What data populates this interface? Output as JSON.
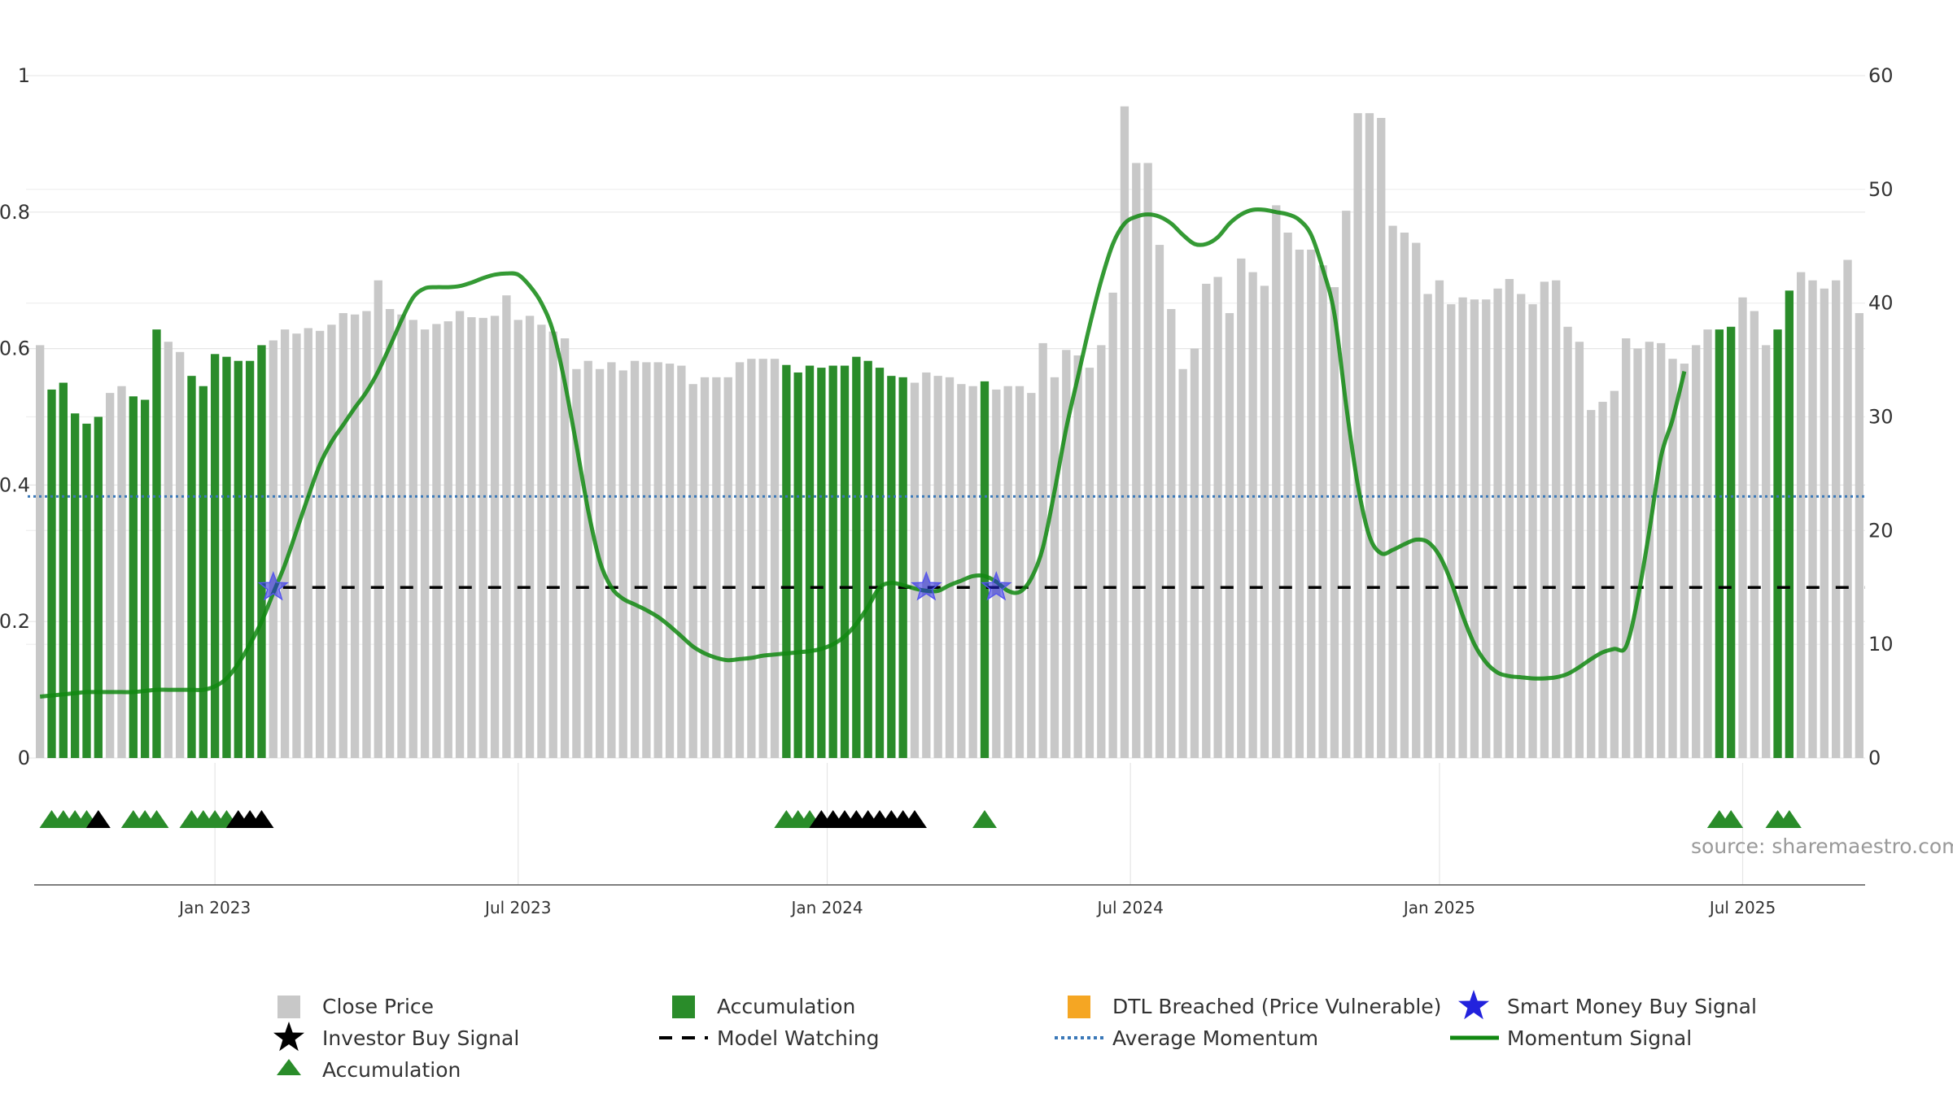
{
  "chart_data": {
    "type": "bar+line",
    "source": "source: sharemaestro.com",
    "left_axis": {
      "ylim": [
        0,
        1
      ],
      "ticks": [
        0,
        0.2,
        0.4,
        0.6,
        0.8,
        1
      ],
      "tick_labels": [
        "0",
        "0.2",
        "0.4",
        "0.6",
        "0.8",
        "1"
      ]
    },
    "right_axis": {
      "ylim": [
        0,
        60
      ],
      "ticks": [
        0,
        10,
        20,
        30,
        40,
        50,
        60
      ],
      "tick_labels": [
        "0",
        "10",
        "20",
        "30",
        "40",
        "50",
        "60"
      ]
    },
    "x_ticks": [
      {
        "label": "Jan 2023",
        "week": 15
      },
      {
        "label": "Jul 2023",
        "week": 41
      },
      {
        "label": "Jan 2024",
        "week": 67.5
      },
      {
        "label": "Jul 2024",
        "week": 93.5
      },
      {
        "label": "Jan 2025",
        "week": 120
      },
      {
        "label": "Jul 2025",
        "week": 146
      }
    ],
    "colors": {
      "close_price": "#c8c8c8",
      "accumulation": "#2a8c2a",
      "dtl_breached": "#f5a623",
      "smart_money": "#2222dd",
      "investor_buy": "#000000",
      "model_watching": "#000000",
      "average_momentum": "#3a78b8",
      "momentum_signal": "#118811"
    },
    "close_price": [
      0.605,
      0.54,
      0.55,
      0.505,
      0.49,
      0.5,
      0.535,
      0.545,
      0.53,
      0.525,
      0.628,
      0.61,
      0.595,
      0.56,
      0.545,
      0.592,
      0.588,
      0.582,
      0.582,
      0.605,
      0.612,
      0.628,
      0.622,
      0.63,
      0.626,
      0.635,
      0.652,
      0.65,
      0.655,
      0.7,
      0.658,
      0.65,
      0.642,
      0.628,
      0.636,
      0.64,
      0.655,
      0.646,
      0.645,
      0.648,
      0.678,
      0.642,
      0.648,
      0.635,
      0.625,
      0.615,
      0.57,
      0.582,
      0.57,
      0.58,
      0.568,
      0.582,
      0.58,
      0.58,
      0.578,
      0.575,
      0.548,
      0.558,
      0.558,
      0.558,
      0.58,
      0.585,
      0.585,
      0.585,
      0.576,
      0.565,
      0.575,
      0.572,
      0.575,
      0.575,
      0.588,
      0.582,
      0.572,
      0.56,
      0.558,
      0.55,
      0.565,
      0.56,
      0.558,
      0.548,
      0.545,
      0.552,
      0.54,
      0.545,
      0.545,
      0.535,
      0.608,
      0.558,
      0.598,
      0.59,
      0.572,
      0.605,
      0.682,
      0.955,
      0.872,
      0.872,
      0.752,
      0.658,
      0.57,
      0.6,
      0.695,
      0.705,
      0.652,
      0.732,
      0.712,
      0.692,
      0.81,
      0.77,
      0.745,
      0.745,
      0.722,
      0.69,
      0.802,
      0.945,
      0.945,
      0.938,
      0.78,
      0.77,
      0.755,
      0.68,
      0.7,
      0.665,
      0.675,
      0.672,
      0.672,
      0.688,
      0.702,
      0.68,
      0.665,
      0.698,
      0.7,
      0.632,
      0.61,
      0.51,
      0.522,
      0.538,
      0.615,
      0.6,
      0.61,
      0.608,
      0.585,
      0.578,
      0.605,
      0.628,
      0.628,
      0.632,
      0.675,
      0.655,
      0.605,
      0.628,
      0.685,
      0.712,
      0.7,
      0.688,
      0.7,
      0.73,
      0.652
    ],
    "accumulation_bars": [
      1,
      2,
      3,
      4,
      5,
      8,
      9,
      10,
      13,
      14,
      15,
      16,
      17,
      18,
      19,
      64,
      65,
      66,
      67,
      68,
      69,
      70,
      71,
      72,
      73,
      74,
      81,
      144,
      145,
      149,
      150
    ],
    "momentum_signal": [
      5.4,
      5.5,
      5.6,
      5.7,
      5.8,
      5.8,
      5.8,
      5.8,
      5.8,
      5.9,
      6.0,
      6.0,
      6.0,
      6.0,
      6.0,
      6.3,
      7.0,
      8.3,
      10.0,
      12.0,
      14.5,
      17.0,
      20.0,
      23.0,
      25.8,
      27.8,
      29.3,
      30.8,
      32.2,
      34.0,
      36.2,
      38.5,
      40.5,
      41.3,
      41.4,
      41.4,
      41.5,
      41.8,
      42.2,
      42.5,
      42.6,
      42.5,
      41.5,
      40.0,
      37.5,
      33.0,
      27.5,
      21.8,
      17.3,
      15.0,
      14.0,
      13.5,
      13.0,
      12.4,
      11.6,
      10.7,
      9.8,
      9.2,
      8.8,
      8.6,
      8.7,
      8.8,
      9.0,
      9.1,
      9.2,
      9.3,
      9.4,
      9.6,
      10.0,
      10.7,
      11.8,
      13.3,
      15.0,
      15.4,
      15.2,
      14.9,
      14.7,
      14.7,
      15.2,
      15.6,
      16.0,
      16.0,
      15.5,
      14.7,
      14.6,
      15.8,
      18.5,
      23.5,
      29.0,
      33.5,
      38.0,
      42.0,
      45.2,
      47.0,
      47.6,
      47.8,
      47.6,
      47.0,
      46.0,
      45.2,
      45.2,
      45.8,
      47.0,
      47.8,
      48.2,
      48.2,
      48.0,
      47.8,
      47.3,
      46.0,
      43.0,
      39.0,
      31.0,
      24.0,
      19.5,
      18.0,
      18.3,
      18.8,
      19.2,
      19.0,
      17.8,
      15.5,
      12.5,
      10.0,
      8.4,
      7.5,
      7.2,
      7.1,
      7.0,
      7.0,
      7.1,
      7.4,
      8.0,
      8.7,
      9.3,
      9.6,
      9.8,
      14.0,
      20.0,
      26.5,
      29.8,
      34.0
    ],
    "average_momentum": 23.0,
    "model_watching_level": 15.0,
    "model_watching_start": 20,
    "smart_money_buy_signals": [
      20,
      76,
      82
    ],
    "investor_buy_signals": [
      5,
      17,
      18,
      19,
      67,
      68,
      69,
      70,
      71,
      72,
      73,
      74,
      75
    ],
    "accumulation_markers": [
      1,
      2,
      3,
      4,
      8,
      9,
      10,
      13,
      14,
      15,
      16,
      64,
      65,
      66,
      81,
      144,
      145,
      149,
      150
    ],
    "legend": {
      "close_price": "Close Price",
      "accumulation_bar": "Accumulation",
      "dtl_breached": "DTL Breached (Price Vulnerable)",
      "smart_money": "Smart Money Buy Signal",
      "investor_buy": "Investor Buy Signal",
      "model_watching": "Model Watching",
      "average_momentum": "Average Momentum",
      "momentum_signal": "Momentum Signal",
      "accumulation_marker": "Accumulation"
    }
  }
}
